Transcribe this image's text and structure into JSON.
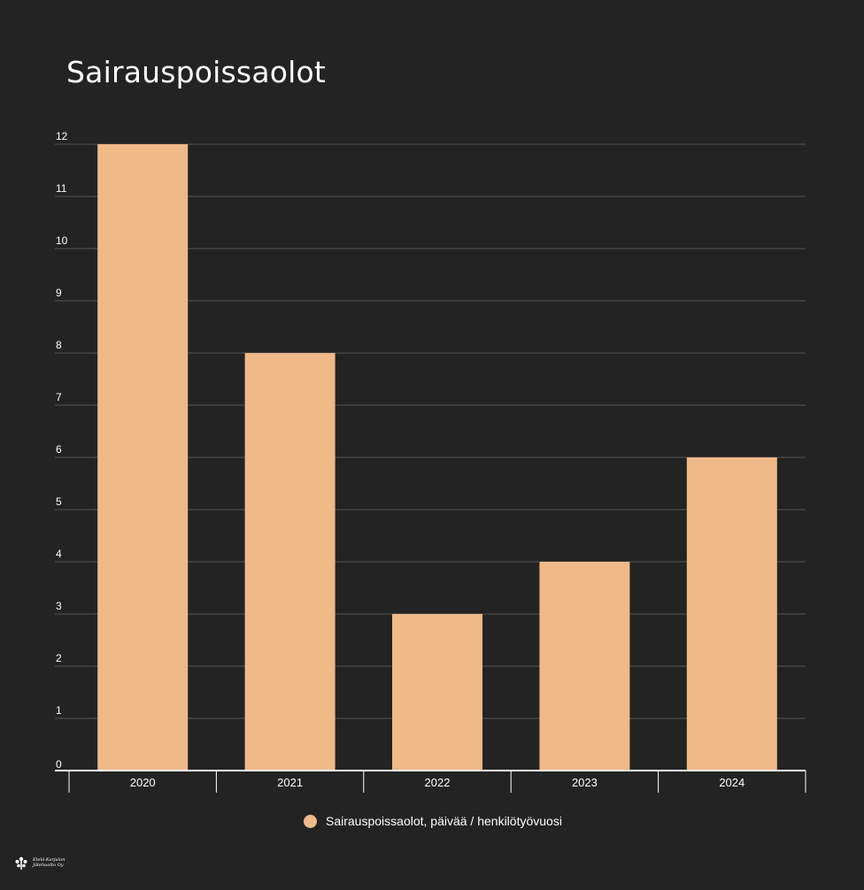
{
  "chart_data": {
    "type": "bar",
    "title": "Sairauspoissaolot",
    "categories": [
      "2020",
      "2021",
      "2022",
      "2023",
      "2024"
    ],
    "series": [
      {
        "name": "Sairauspoissaolot, päivää / henkilötyövuosi",
        "values": [
          12,
          8,
          3,
          4,
          6
        ]
      }
    ],
    "ylim": [
      0,
      12
    ],
    "y_ticks": [
      0,
      1,
      2,
      3,
      4,
      5,
      6,
      7,
      8,
      9,
      10,
      11,
      12
    ],
    "xlabel": "",
    "ylabel": "",
    "grid": true,
    "legend_position": "bottom-center",
    "colors": {
      "background": "#232323",
      "bar": "#efb988",
      "grid": "#555555",
      "axis": "#ffffff",
      "text": "#ffffff"
    }
  },
  "logo": {
    "name": "Etelä-Karjalan Jätehuolto Oy",
    "icon": "tree-logo-icon"
  }
}
